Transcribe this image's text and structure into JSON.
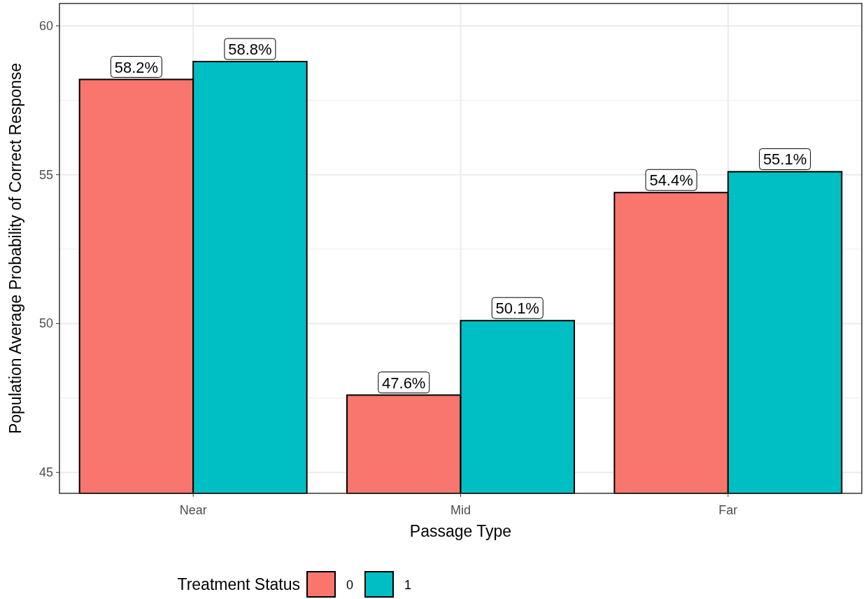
{
  "chart_data": {
    "type": "bar",
    "xlabel": "Passage Type",
    "ylabel": "Population Average Probability of Correct Response",
    "legend_title": "Treatment Status",
    "categories": [
      "Near",
      "Mid",
      "Far"
    ],
    "series": [
      {
        "name": "0",
        "color": "#f8766d",
        "values": [
          58.2,
          47.6,
          54.4
        ],
        "value_labels": [
          "58.2%",
          "47.6%",
          "54.4%"
        ]
      },
      {
        "name": "1",
        "color": "#00bfc4",
        "values": [
          58.8,
          50.1,
          55.1
        ],
        "value_labels": [
          "58.8%",
          "50.1%",
          "55.1%"
        ]
      }
    ],
    "ylim": [
      44.3,
      60.75
    ],
    "yticks": [
      45,
      {
        "value": 47.5,
        "label": null
      },
      50,
      {
        "value": 52.5,
        "label": null
      },
      55,
      {
        "value": 57.5,
        "label": null
      },
      60
    ],
    "grid": true,
    "legend": "bottom"
  }
}
